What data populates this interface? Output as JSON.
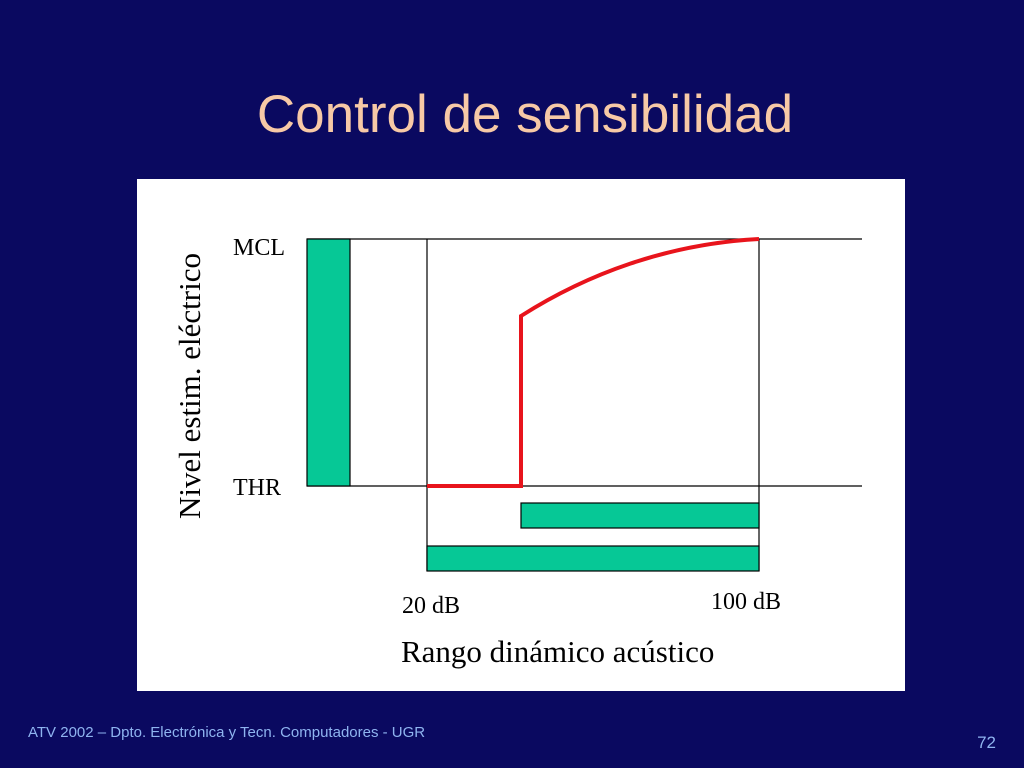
{
  "slide": {
    "title": "Control de sensibilidad",
    "footer": "ATV 2002 – Dpto. Electrónica y Tecn. Computadores - UGR",
    "page_number": "72"
  },
  "diagram": {
    "y_axis_label": "Nivel estim. eléctrico",
    "level_high": "MCL",
    "level_low": "THR",
    "x_low_label": "20 dB",
    "x_high_label": "100 dB",
    "x_axis_label": "Rango dinámico acústico",
    "colors": {
      "bar": "#06c896",
      "curve": "#e8141c",
      "title": "#f7c9a6",
      "background": "#0a0960"
    }
  }
}
